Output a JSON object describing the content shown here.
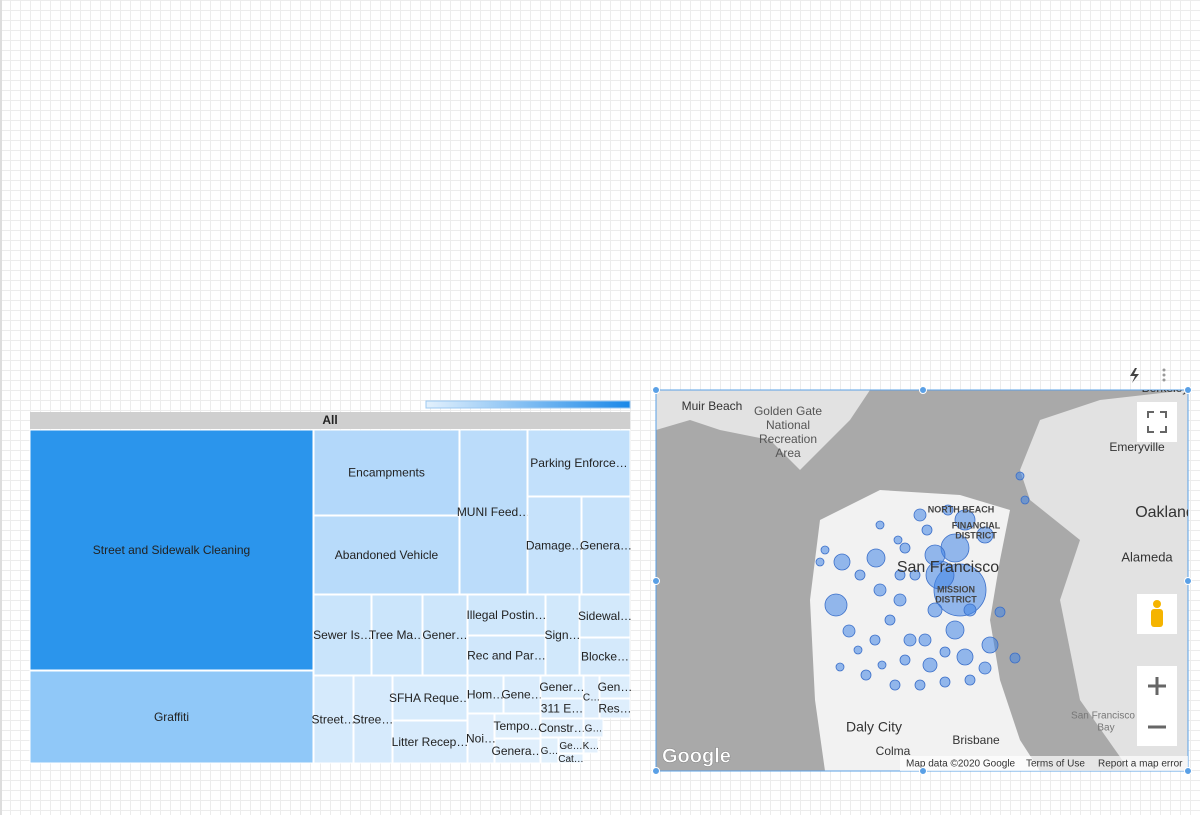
{
  "treemap": {
    "header": "All",
    "cells": [
      "Street and Sidewalk Cleaning",
      "Graffiti",
      "Encampments",
      "Abandoned Vehicle",
      "MUNI Feed…",
      "Parking Enforce…",
      "Damage…",
      "Genera…",
      "Sewer Is…",
      "Tree Ma…",
      "Gener…",
      "Illegal Postin…",
      "Rec and Par…",
      "Sign…",
      "Sidewal…",
      "Blocke…",
      "Street…",
      "Stree…",
      "SFHA Reque…",
      "Litter Recep…",
      "Hom…",
      "Gene…",
      "Gener…",
      "311 E…",
      "C…",
      "Gen…",
      "Res…",
      "Noi…",
      "Tempo…",
      "Genera…",
      "Constr…",
      "G…",
      "G…",
      "Ge…",
      "Cat…",
      "K…"
    ]
  },
  "map": {
    "places": [
      "Muir Beach",
      "Golden Gate",
      "National",
      "Recreation",
      "Area",
      "Berkeley",
      "Emeryville",
      "Oakland",
      "Alameda",
      "NORTH BEACH",
      "FINANCIAL",
      "DISTRICT",
      "San Francisco",
      "MISSION",
      "DISTRICT",
      "Daly City",
      "Colma",
      "Brisbane",
      "San Francisco",
      "Bay"
    ],
    "logo": "Google",
    "attribution": "Map data ©2020 Google",
    "terms": "Terms of Use",
    "report": "Report a map error"
  }
}
